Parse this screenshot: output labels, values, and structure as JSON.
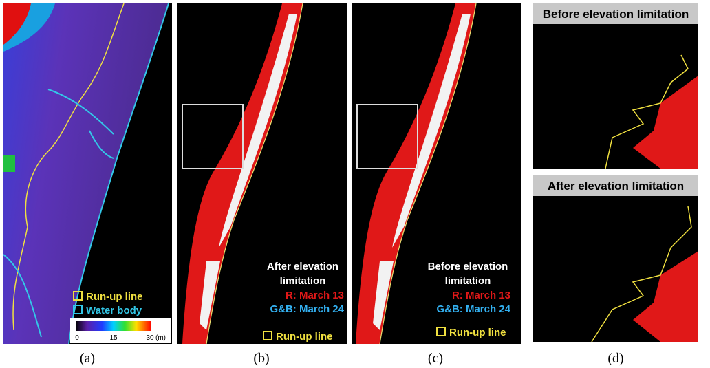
{
  "panels": [
    {
      "caption": "(a)",
      "legend": [
        "Run-up line",
        "Water body"
      ],
      "colorbar": {
        "ticks": [
          "0",
          "15",
          "30"
        ],
        "unit": "(m)"
      }
    },
    {
      "caption": "(b)",
      "note": [
        "After elevation",
        "limitation"
      ],
      "bands": [
        "R: March 13",
        "G&B: March 24"
      ],
      "legend": "Run-up line"
    },
    {
      "caption": "(c)",
      "note": [
        "Before elevation",
        "limitation"
      ],
      "bands": [
        "R: March 13",
        "G&B: March 24"
      ],
      "legend": "Run-up line"
    },
    {
      "caption": "(d)",
      "headers": [
        "Before elevation limitation",
        "After elevation limitation"
      ]
    }
  ]
}
